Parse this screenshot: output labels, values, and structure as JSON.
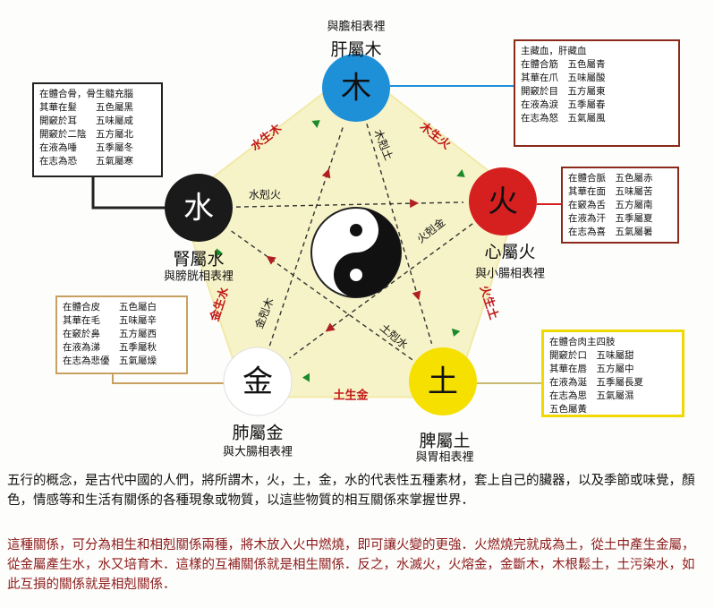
{
  "elements": [
    {
      "key": "wood",
      "glyph": "木",
      "color": "#1e90d8",
      "text_color": "#111111",
      "name": "肝屬木",
      "pair": "與膽相表裡"
    },
    {
      "key": "fire",
      "glyph": "火",
      "color": "#d62020",
      "text_color": "#111111",
      "name": "心屬火",
      "pair": "與小腸相表裡"
    },
    {
      "key": "earth",
      "glyph": "土",
      "color": "#f5e000",
      "text_color": "#111111",
      "name": "脾屬土",
      "pair": "與胃相表裡"
    },
    {
      "key": "metal",
      "glyph": "金",
      "color": "#ffffff",
      "text_color": "#111111",
      "name": "肺屬金",
      "pair": "與大腸相表裡"
    },
    {
      "key": "water",
      "glyph": "水",
      "color": "#1a1a1a",
      "text_color": "#ffffff",
      "name": "腎屬水",
      "pair": "與膀胱相表裡"
    }
  ],
  "generating": [
    {
      "label": "木生火",
      "from": "wood",
      "to": "fire"
    },
    {
      "label": "火生土",
      "from": "fire",
      "to": "earth"
    },
    {
      "label": "土生金",
      "from": "earth",
      "to": "metal"
    },
    {
      "label": "金生水",
      "from": "metal",
      "to": "water"
    },
    {
      "label": "水生木",
      "from": "water",
      "to": "wood"
    }
  ],
  "controlling": [
    {
      "label": "木剋土",
      "from": "wood",
      "to": "earth"
    },
    {
      "label": "火剋金",
      "from": "fire",
      "to": "metal"
    },
    {
      "label": "土剋水",
      "from": "earth",
      "to": "water"
    },
    {
      "label": "金剋木",
      "from": "metal",
      "to": "wood"
    },
    {
      "label": "水剋火",
      "from": "water",
      "to": "fire"
    }
  ],
  "info_boxes": [
    {
      "key": "wood",
      "border_color": "#8b2a1a",
      "link_color": "#1e90d8",
      "lines": [
        "主藏血，肝藏血",
        "在體合筋　五色屬青",
        "其華在爪　五味屬酸",
        "開竅於目　五方屬東",
        "在液為淚　五季屬春",
        "在志為怒　五氣屬風"
      ]
    },
    {
      "key": "fire",
      "border_color": "#8b2a1a",
      "link_color": "#d62020",
      "lines": [
        "在體合脈　五色屬赤",
        "其華在面　五味屬苦",
        "在竅為舌　五方屬南",
        "在液為汗　五季屬夏",
        "在志為喜　五氣屬暑"
      ]
    },
    {
      "key": "earth",
      "border_color": "#f0d800",
      "link_color": "#c8b870",
      "lines": [
        "在體合肉主四肢",
        "開竅於口　五味屬甜",
        "其華在唇　五方屬中",
        "在液為涎　五季屬長夏",
        "在志為思　五氣屬濕",
        "五色屬黃"
      ]
    },
    {
      "key": "metal",
      "border_color": "#c8a060",
      "link_color": "#c8a060",
      "lines": [
        "在體合皮　　五色屬白",
        "其華在毛　　五味屬辛",
        "在竅於鼻　　五方屬西",
        "在液為涕　　五季屬秋",
        "在志為悲優　五氣屬燥"
      ]
    },
    {
      "key": "water",
      "border_color": "#222222",
      "link_color": "#222222",
      "lines": [
        "在體合骨，骨生髓充腦",
        "其華在髮　　五色屬黑",
        "開竅於耳　　五味屬咸",
        "開竅於二陰　五方屬北",
        "在液為唾　　五季屬冬",
        "在志為恐　　五氣屬寒"
      ]
    }
  ],
  "colors": {
    "pentagon_fill": "#f7f3c8",
    "generating_label": "#c01818",
    "controlling_label": "#111111",
    "arrow_red": "#b02020",
    "arrow_green": "#1a8a2a"
  },
  "paragraph1": "五行的概念，是古代中國的人們，將所謂木，火，土，金，水的代表性五種素材，套上自己的臟器，以及季節或味覺，顏色，情感等和生活有關係的各種現象或物質，以這些物質的相互關係來掌握世界．",
  "paragraph2": "這種關係，可分為相生和相剋關係兩種，將木放入火中燃燒，即可讓火變的更強．火燃燒完就成為土，從土中產生金屬，從金屬產生水，水又培育木．這樣的互補關係就是相生關係．反之，水滅火，火熔金，金斷木，木根鬆土，土污染水，如此互損的關係就是相剋關係．"
}
